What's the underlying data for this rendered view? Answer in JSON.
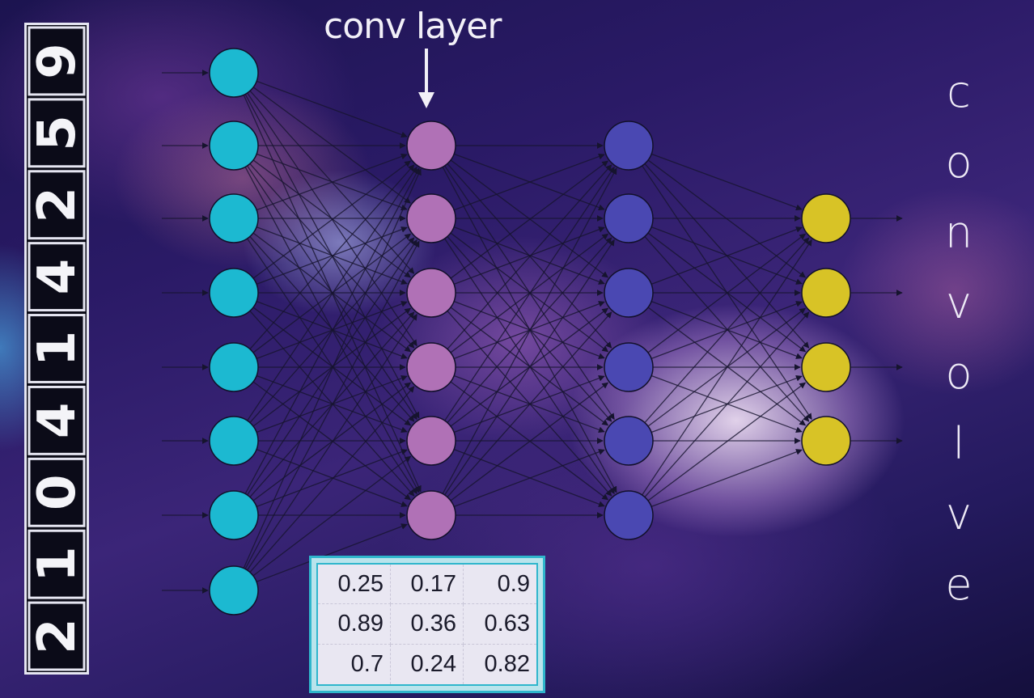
{
  "title": "conv layer",
  "side_word": [
    "c",
    "o",
    "n",
    "v",
    "o",
    "l",
    "v",
    "e"
  ],
  "digits": [
    "9",
    "5",
    "2",
    "4",
    "1",
    "4",
    "0",
    "1",
    "2"
  ],
  "kernel": [
    [
      "0.25",
      "0.17",
      "0.9"
    ],
    [
      "0.89",
      "0.36",
      "0.63"
    ],
    [
      "0.7",
      "0.24",
      "0.82"
    ]
  ],
  "colors": {
    "input": "#1cb9d1",
    "conv": "#b071b6",
    "hidden": "#4a48b2",
    "output": "#d8c326",
    "edge": "#16142e"
  },
  "layers": [
    {
      "name": "input",
      "nodes": 8
    },
    {
      "name": "conv",
      "nodes": 6
    },
    {
      "name": "hidden",
      "nodes": 6
    },
    {
      "name": "output",
      "nodes": 4
    }
  ]
}
